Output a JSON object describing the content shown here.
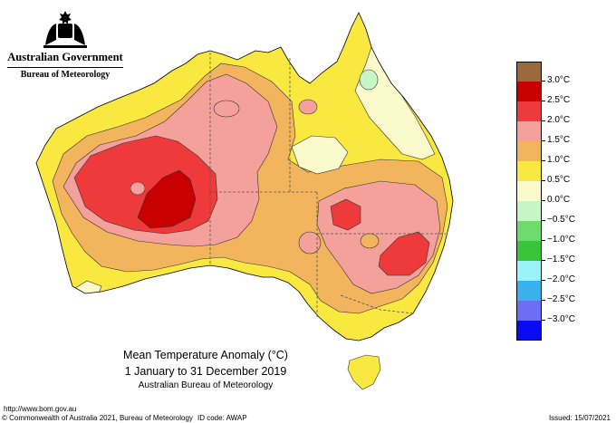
{
  "branding": {
    "government": "Australian Government",
    "bureau": "Bureau of Meteorology"
  },
  "map_title": {
    "line1": "Mean Temperature Anomaly (°C)",
    "line2": "1 January to 31 December 2019",
    "line3": "Australian Bureau of Meteorology"
  },
  "legend": {
    "levels": [
      {
        "color": "#9b6a3c",
        "label": "3.0°C"
      },
      {
        "color": "#c80000",
        "label": "2.5°C"
      },
      {
        "color": "#ee3a3a",
        "label": "2.0°C"
      },
      {
        "color": "#f4a09b",
        "label": "1.5°C"
      },
      {
        "color": "#f2b45c",
        "label": "1.0°C"
      },
      {
        "color": "#f8e840",
        "label": "0.5°C"
      },
      {
        "color": "#fafacc",
        "label": "0.0°C"
      },
      {
        "color": "#c6f5c6",
        "label": "−0.5°C"
      },
      {
        "color": "#6ddb6d",
        "label": "−1.0°C"
      },
      {
        "color": "#39c539",
        "label": "−1.5°C"
      },
      {
        "color": "#9af3f8",
        "label": "−2.0°C"
      },
      {
        "color": "#3ab0ec",
        "label": "−2.5°C"
      },
      {
        "color": "#6d6df5",
        "label": "−3.0°C"
      },
      {
        "color": "#0a0af5",
        "label": ""
      }
    ]
  },
  "footer": {
    "url": "http://www.bom.gov.au",
    "copyright": "© Commonwealth of Australia 2021, Bureau of Meteorology",
    "id_code": "ID code: AWAP",
    "issued": "Issued: 15/07/2021"
  },
  "palette": {
    "band_0_0_5": "#fafacc",
    "band_0_5_1_0": "#f8e840",
    "band_1_0_1_5": "#f2b45c",
    "band_1_5_2_0": "#f4a09b",
    "band_2_0_2_5": "#ee3a3a",
    "band_2_5_3_0": "#c80000",
    "band_neg_0_5_0": "#c6f5c6"
  }
}
